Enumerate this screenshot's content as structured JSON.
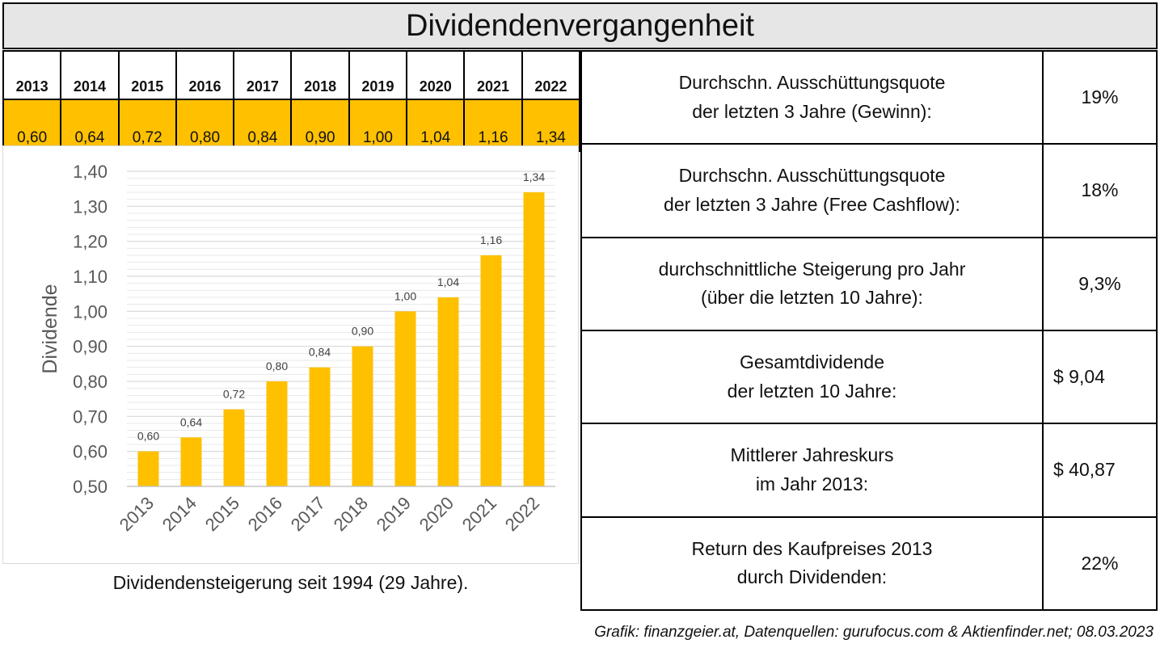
{
  "title": "Dividendenvergangenheit",
  "year_row": [
    "2013",
    "2014",
    "2015",
    "2016",
    "2017",
    "2018",
    "2019",
    "2020",
    "2021",
    "2022"
  ],
  "value_row": [
    "0,60",
    "0,64",
    "0,72",
    "0,80",
    "0,84",
    "0,90",
    "1,00",
    "1,04",
    "1,16",
    "1,34"
  ],
  "stats": [
    {
      "line1": "Durchschn. Ausschüttungsquote",
      "line2": "der letzten 3 Jahre (Gewinn):",
      "value": "19%"
    },
    {
      "line1": "Durchschn. Ausschüttungsquote",
      "line2": "der letzten 3 Jahre (Free Cashflow):",
      "value": "18%"
    },
    {
      "line1": "durchschnittliche Steigerung pro Jahr",
      "line2": "(über die letzten 10 Jahre):",
      "value": "9,3%"
    },
    {
      "line1": "Gesamtdividende",
      "line2": "der letzten 10 Jahre:",
      "value": "$ 9,04"
    },
    {
      "line1": "Mittlerer Jahreskurs",
      "line2": "im Jahr 2013:",
      "value": "$ 40,87"
    },
    {
      "line1": "Return des Kaufpreises 2013",
      "line2": "durch Dividenden:",
      "value": "22%"
    }
  ],
  "caption": "Dividendensteigerung seit 1994 (29 Jahre).",
  "source": "Grafik: finanzgeier.at, Datenquellen: gurufocus.com & Aktienfinder.net; 08.03.2023",
  "colors": {
    "bar": "#ffc000",
    "header_bg": "#e6e6e6",
    "grid": "#d9d9d9",
    "axis_text": "#595959"
  },
  "chart_data": {
    "type": "bar",
    "categories": [
      "2013",
      "2014",
      "2015",
      "2016",
      "2017",
      "2018",
      "2019",
      "2020",
      "2021",
      "2022"
    ],
    "values": [
      0.6,
      0.64,
      0.72,
      0.8,
      0.84,
      0.9,
      1.0,
      1.04,
      1.16,
      1.34
    ],
    "value_labels": [
      "0,60",
      "0,64",
      "0,72",
      "0,80",
      "0,84",
      "0,90",
      "1,00",
      "1,04",
      "1,16",
      "1,34"
    ],
    "ylabel": "Dividende",
    "xlabel": "",
    "ylim": [
      0.5,
      1.4
    ],
    "yticks": [
      0.5,
      0.6,
      0.7,
      0.8,
      0.9,
      1.0,
      1.1,
      1.2,
      1.3,
      1.4
    ],
    "ytick_labels": [
      "0,50",
      "0,60",
      "0,70",
      "0,80",
      "0,90",
      "1,00",
      "1,10",
      "1,20",
      "1,30",
      "1,40"
    ],
    "grid": true,
    "legend": false
  }
}
